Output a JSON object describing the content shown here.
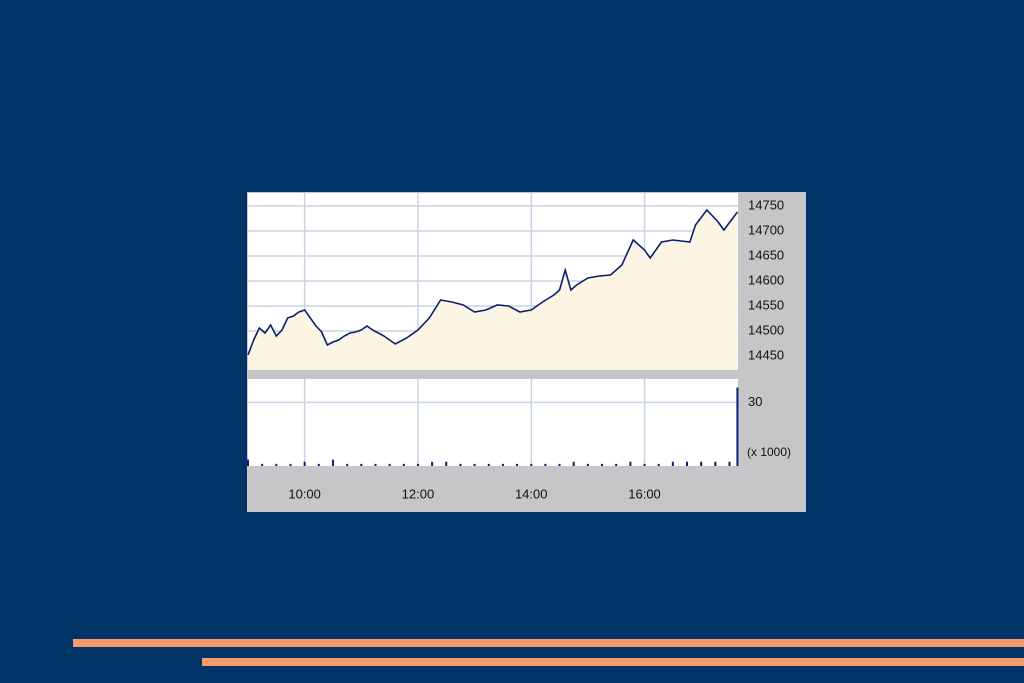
{
  "chart_data": [
    {
      "type": "area",
      "x": [
        9.0,
        9.1,
        9.2,
        9.3,
        9.4,
        9.5,
        9.6,
        9.7,
        9.8,
        9.9,
        10.0,
        10.1,
        10.2,
        10.3,
        10.4,
        10.5,
        10.6,
        10.7,
        10.8,
        10.9,
        11.0,
        11.1,
        11.2,
        11.4,
        11.6,
        11.8,
        12.0,
        12.2,
        12.4,
        12.6,
        12.8,
        13.0,
        13.2,
        13.4,
        13.6,
        13.8,
        14.0,
        14.2,
        14.4,
        14.5,
        14.6,
        14.7,
        14.8,
        15.0,
        15.2,
        15.4,
        15.6,
        15.8,
        16.0,
        16.1,
        16.3,
        16.5,
        16.8,
        16.9,
        17.1,
        17.3,
        17.4,
        17.64
      ],
      "values": [
        14452,
        14482,
        14506,
        14496,
        14512,
        14490,
        14502,
        14526,
        14530,
        14538,
        14542,
        14526,
        14510,
        14498,
        14472,
        14478,
        14482,
        14490,
        14496,
        14498,
        14502,
        14510,
        14502,
        14490,
        14474,
        14486,
        14502,
        14526,
        14562,
        14558,
        14552,
        14538,
        14542,
        14552,
        14550,
        14538,
        14542,
        14558,
        14572,
        14582,
        14622,
        14582,
        14592,
        14606,
        14610,
        14612,
        14632,
        14682,
        14662,
        14646,
        14678,
        14682,
        14678,
        14712,
        14742,
        14718,
        14702,
        14738
      ],
      "color": "#0b1f6e",
      "fill": "#fdf5e4",
      "xlim": [
        9.0,
        17.65
      ],
      "ylim": [
        14422,
        14776
      ],
      "yticks": [
        14450,
        14500,
        14550,
        14600,
        14650,
        14700,
        14750
      ],
      "grid": true
    },
    {
      "type": "bar",
      "x": [
        9.0,
        9.25,
        9.5,
        9.75,
        10.0,
        10.25,
        10.5,
        10.75,
        11.0,
        11.25,
        11.5,
        11.75,
        12.0,
        12.25,
        12.5,
        12.75,
        13.0,
        13.25,
        13.5,
        13.75,
        14.0,
        14.25,
        14.5,
        14.75,
        15.0,
        15.25,
        15.5,
        15.75,
        16.0,
        16.25,
        16.5,
        16.75,
        17.0,
        17.25,
        17.5,
        17.64
      ],
      "values": [
        3,
        1,
        1,
        1,
        2,
        1,
        3,
        1,
        1,
        1,
        1,
        1,
        1,
        2,
        2,
        1,
        1,
        1,
        1,
        1,
        1,
        1,
        1,
        2,
        1,
        1,
        1,
        2,
        1,
        1,
        2,
        2,
        2,
        2,
        2,
        37
      ],
      "color": "#0b1f6e",
      "xlim": [
        9.0,
        17.65
      ],
      "ylim": [
        0,
        41
      ],
      "yticks": [
        30
      ],
      "y_unit_label": "(x 1000)",
      "xticks": [
        {
          "value": 10,
          "label": "10:00"
        },
        {
          "value": 12,
          "label": "12:00"
        },
        {
          "value": 14,
          "label": "14:00"
        },
        {
          "value": 16,
          "label": "16:00"
        }
      ],
      "grid": true
    }
  ]
}
